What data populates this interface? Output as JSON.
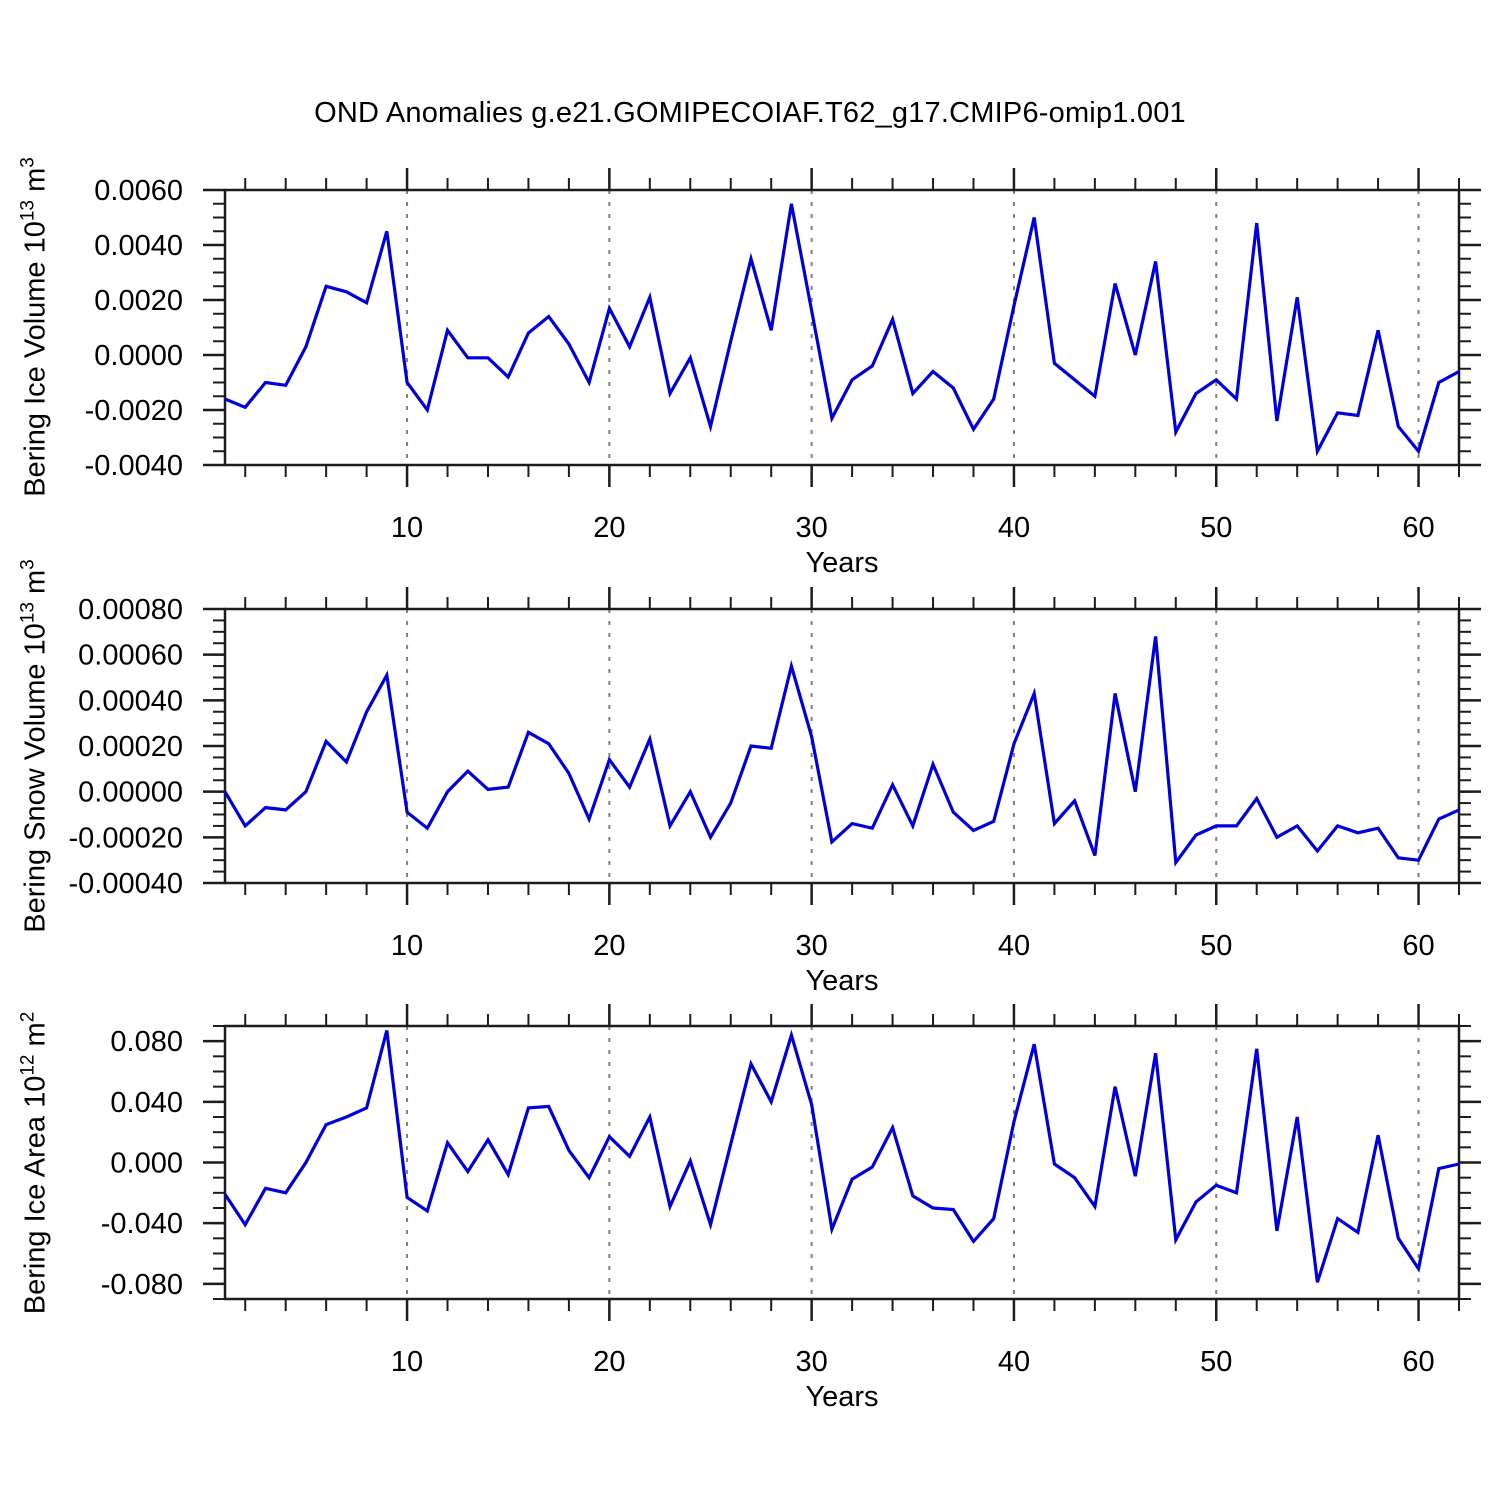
{
  "title": "OND Anomalies g.e21.GOMIPECOIAF.T62_g17.CMIP6-omip1.001",
  "x_axis": {
    "label": "Years",
    "min": 1,
    "max": 62,
    "major_ticks": [
      10,
      20,
      30,
      40,
      50,
      60
    ],
    "minor_tick_step": 2,
    "grid_on_major": true
  },
  "line_color": "#0000dd",
  "grid_color": "#7f7f7f",
  "frame_color": "#1c1c1c",
  "chart_data": [
    {
      "type": "line",
      "name": "bering-ice-volume",
      "ylabel": {
        "text": "Bering Ice Volume 10",
        "exp": "13",
        "unit": " m",
        "unit_exp": "3"
      },
      "ylim": [
        -0.004,
        0.006
      ],
      "ytick_values": [
        0.006,
        0.004,
        0.002,
        0.0,
        -0.002,
        -0.004
      ],
      "ytick_labels": [
        "0.0060",
        "0.0040",
        "0.0020",
        "0.0000",
        "-0.0020",
        "-0.0040"
      ],
      "yminor_step": 0.0005,
      "x_start": 1,
      "values": [
        -0.0016,
        -0.0019,
        -0.001,
        -0.0011,
        0.0003,
        0.0025,
        0.0023,
        0.0019,
        0.0045,
        -0.001,
        -0.002,
        0.0009,
        -0.0001,
        -0.0001,
        -0.0008,
        0.0008,
        0.0014,
        0.0004,
        -0.001,
        0.0017,
        0.0003,
        0.0021,
        -0.0014,
        -0.0001,
        -0.0026,
        0.0005,
        0.0035,
        0.0009,
        0.0055,
        0.0016,
        -0.0023,
        -0.0009,
        -0.0004,
        0.0013,
        -0.0014,
        -0.0006,
        -0.0012,
        -0.0027,
        -0.0016,
        0.0018,
        0.005,
        -0.0003,
        -0.0009,
        -0.0015,
        0.0026,
        0.0,
        0.0034,
        -0.0028,
        -0.0014,
        -0.0009,
        -0.0016,
        0.0048,
        -0.0024,
        0.0021,
        -0.0035,
        -0.0021,
        -0.0022,
        0.0009,
        -0.0026,
        -0.0035,
        -0.001,
        -0.0006
      ]
    },
    {
      "type": "line",
      "name": "bering-snow-volume",
      "ylabel": {
        "text": "Bering Snow Volume 10",
        "exp": "13",
        "unit": " m",
        "unit_exp": "3"
      },
      "ylim": [
        -0.0004,
        0.0008
      ],
      "ytick_values": [
        0.0008,
        0.0006,
        0.0004,
        0.0002,
        0.0,
        -0.0002,
        -0.0004
      ],
      "ytick_labels": [
        "0.00080",
        "0.00060",
        "0.00040",
        "0.00020",
        "0.00000",
        "-0.00020",
        "-0.00040"
      ],
      "yminor_step": 5e-05,
      "x_start": 1,
      "values": [
        0.0,
        -0.00015,
        -7e-05,
        -8e-05,
        0.0,
        0.00022,
        0.00013,
        0.00035,
        0.00051,
        -9e-05,
        -0.00016,
        0.0,
        9e-05,
        1e-05,
        2e-05,
        0.00026,
        0.00021,
        8e-05,
        -0.00012,
        0.00014,
        2e-05,
        0.00023,
        -0.00015,
        0.0,
        -0.0002,
        -5e-05,
        0.0002,
        0.00019,
        0.00055,
        0.00024,
        -0.00022,
        -0.00014,
        -0.00016,
        3e-05,
        -0.00015,
        0.00012,
        -9e-05,
        -0.00017,
        -0.00013,
        0.00021,
        0.00043,
        -0.00014,
        -4e-05,
        -0.00028,
        0.00043,
        0.0,
        0.00068,
        -0.00031,
        -0.00019,
        -0.00015,
        -0.00015,
        -3e-05,
        -0.0002,
        -0.00015,
        -0.00026,
        -0.00015,
        -0.00018,
        -0.00016,
        -0.00029,
        -0.0003,
        -0.00012,
        -8e-05
      ]
    },
    {
      "type": "line",
      "name": "bering-ice-area",
      "ylabel": {
        "text": "Bering Ice Area 10",
        "exp": "12",
        "unit": " m",
        "unit_exp": "2"
      },
      "ylim": [
        -0.09,
        0.09
      ],
      "ytick_values": [
        0.08,
        0.04,
        0.0,
        -0.04,
        -0.08
      ],
      "ytick_labels": [
        "0.080",
        "0.040",
        "0.000",
        "-0.040",
        "-0.080"
      ],
      "yminor_step": 0.01,
      "x_start": 1,
      "values": [
        -0.021,
        -0.041,
        -0.017,
        -0.02,
        0.0,
        0.025,
        0.03,
        0.036,
        0.087,
        -0.023,
        -0.032,
        0.013,
        -0.006,
        0.015,
        -0.008,
        0.036,
        0.037,
        0.008,
        -0.01,
        0.017,
        0.004,
        0.03,
        -0.029,
        0.001,
        -0.041,
        0.012,
        0.065,
        0.04,
        0.084,
        0.038,
        -0.044,
        -0.011,
        -0.003,
        0.023,
        -0.022,
        -0.03,
        -0.031,
        -0.052,
        -0.037,
        0.027,
        0.078,
        -0.001,
        -0.01,
        -0.029,
        0.05,
        -0.009,
        0.072,
        -0.051,
        -0.026,
        -0.015,
        -0.02,
        0.075,
        -0.045,
        0.03,
        -0.079,
        -0.037,
        -0.046,
        0.018,
        -0.05,
        -0.07,
        -0.004,
        -0.001
      ]
    }
  ]
}
